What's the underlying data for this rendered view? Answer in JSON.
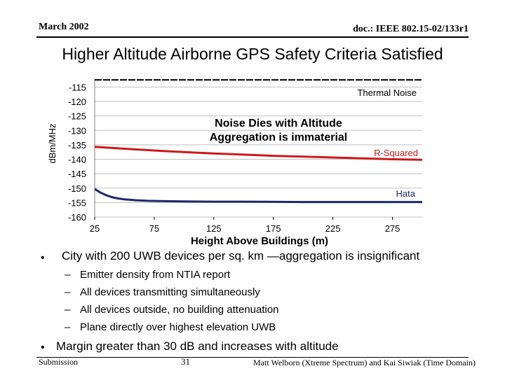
{
  "header": {
    "date": "March 2002",
    "doc": "doc.: IEEE 802.15-02/133r1"
  },
  "slide_title": "Higher Altitude Airborne GPS Safety Criteria Satisfied",
  "chart_data": {
    "type": "line",
    "xlabel": "Height Above Buildings (m)",
    "ylabel": "dBm/MHz",
    "xlim": [
      25,
      300
    ],
    "ylim": [
      -160,
      -112
    ],
    "xticks": [
      25,
      75,
      125,
      175,
      225,
      275
    ],
    "yticks": [
      -115,
      -120,
      -125,
      -130,
      -135,
      -140,
      -145,
      -150,
      -155,
      -160
    ],
    "grid": "horizontal",
    "series": [
      {
        "name": "Thermal Noise",
        "color": "#000000",
        "style": "dashed",
        "x": [
          25,
          300
        ],
        "y": [
          -112.5,
          -112.5
        ]
      },
      {
        "name": "R-Squared",
        "color": "#cc1a1a",
        "x": [
          25,
          40,
          60,
          80,
          100,
          125,
          150,
          175,
          200,
          225,
          250,
          275,
          300
        ],
        "y": [
          -135.7,
          -136.1,
          -136.6,
          -137.1,
          -137.5,
          -138.0,
          -138.4,
          -138.8,
          -139.1,
          -139.4,
          -139.7,
          -140.0,
          -140.2
        ]
      },
      {
        "name": "Hata",
        "color": "#1a2a6b",
        "x": [
          25,
          30,
          35,
          40,
          45,
          50,
          60,
          70,
          80,
          100,
          125,
          150,
          200,
          250,
          300
        ],
        "y": [
          -150.3,
          -151.6,
          -152.5,
          -153.2,
          -153.6,
          -153.9,
          -154.2,
          -154.4,
          -154.5,
          -154.6,
          -154.7,
          -154.7,
          -154.8,
          -154.8,
          -154.8
        ]
      }
    ],
    "annotation_lines": [
      "Noise Dies with Altitude",
      "Aggregation is immaterial"
    ]
  },
  "bullets": {
    "main1": "City with 200 UWB devices per sq. km —aggregation is insignificant",
    "dash": "–",
    "subs": [
      "Emitter density from NTIA report",
      "All devices transmitting simultaneously",
      "All devices outside, no building attenuation",
      "Plane directly over highest elevation UWB"
    ],
    "main2": "Margin greater than 30 dB and increases with altitude",
    "dot": "•"
  },
  "footer": {
    "left": "Submission",
    "page": "31",
    "right": "Matt Welborn (Xtreme Spectrum) and Kai Siwiak (Time Domain)"
  }
}
